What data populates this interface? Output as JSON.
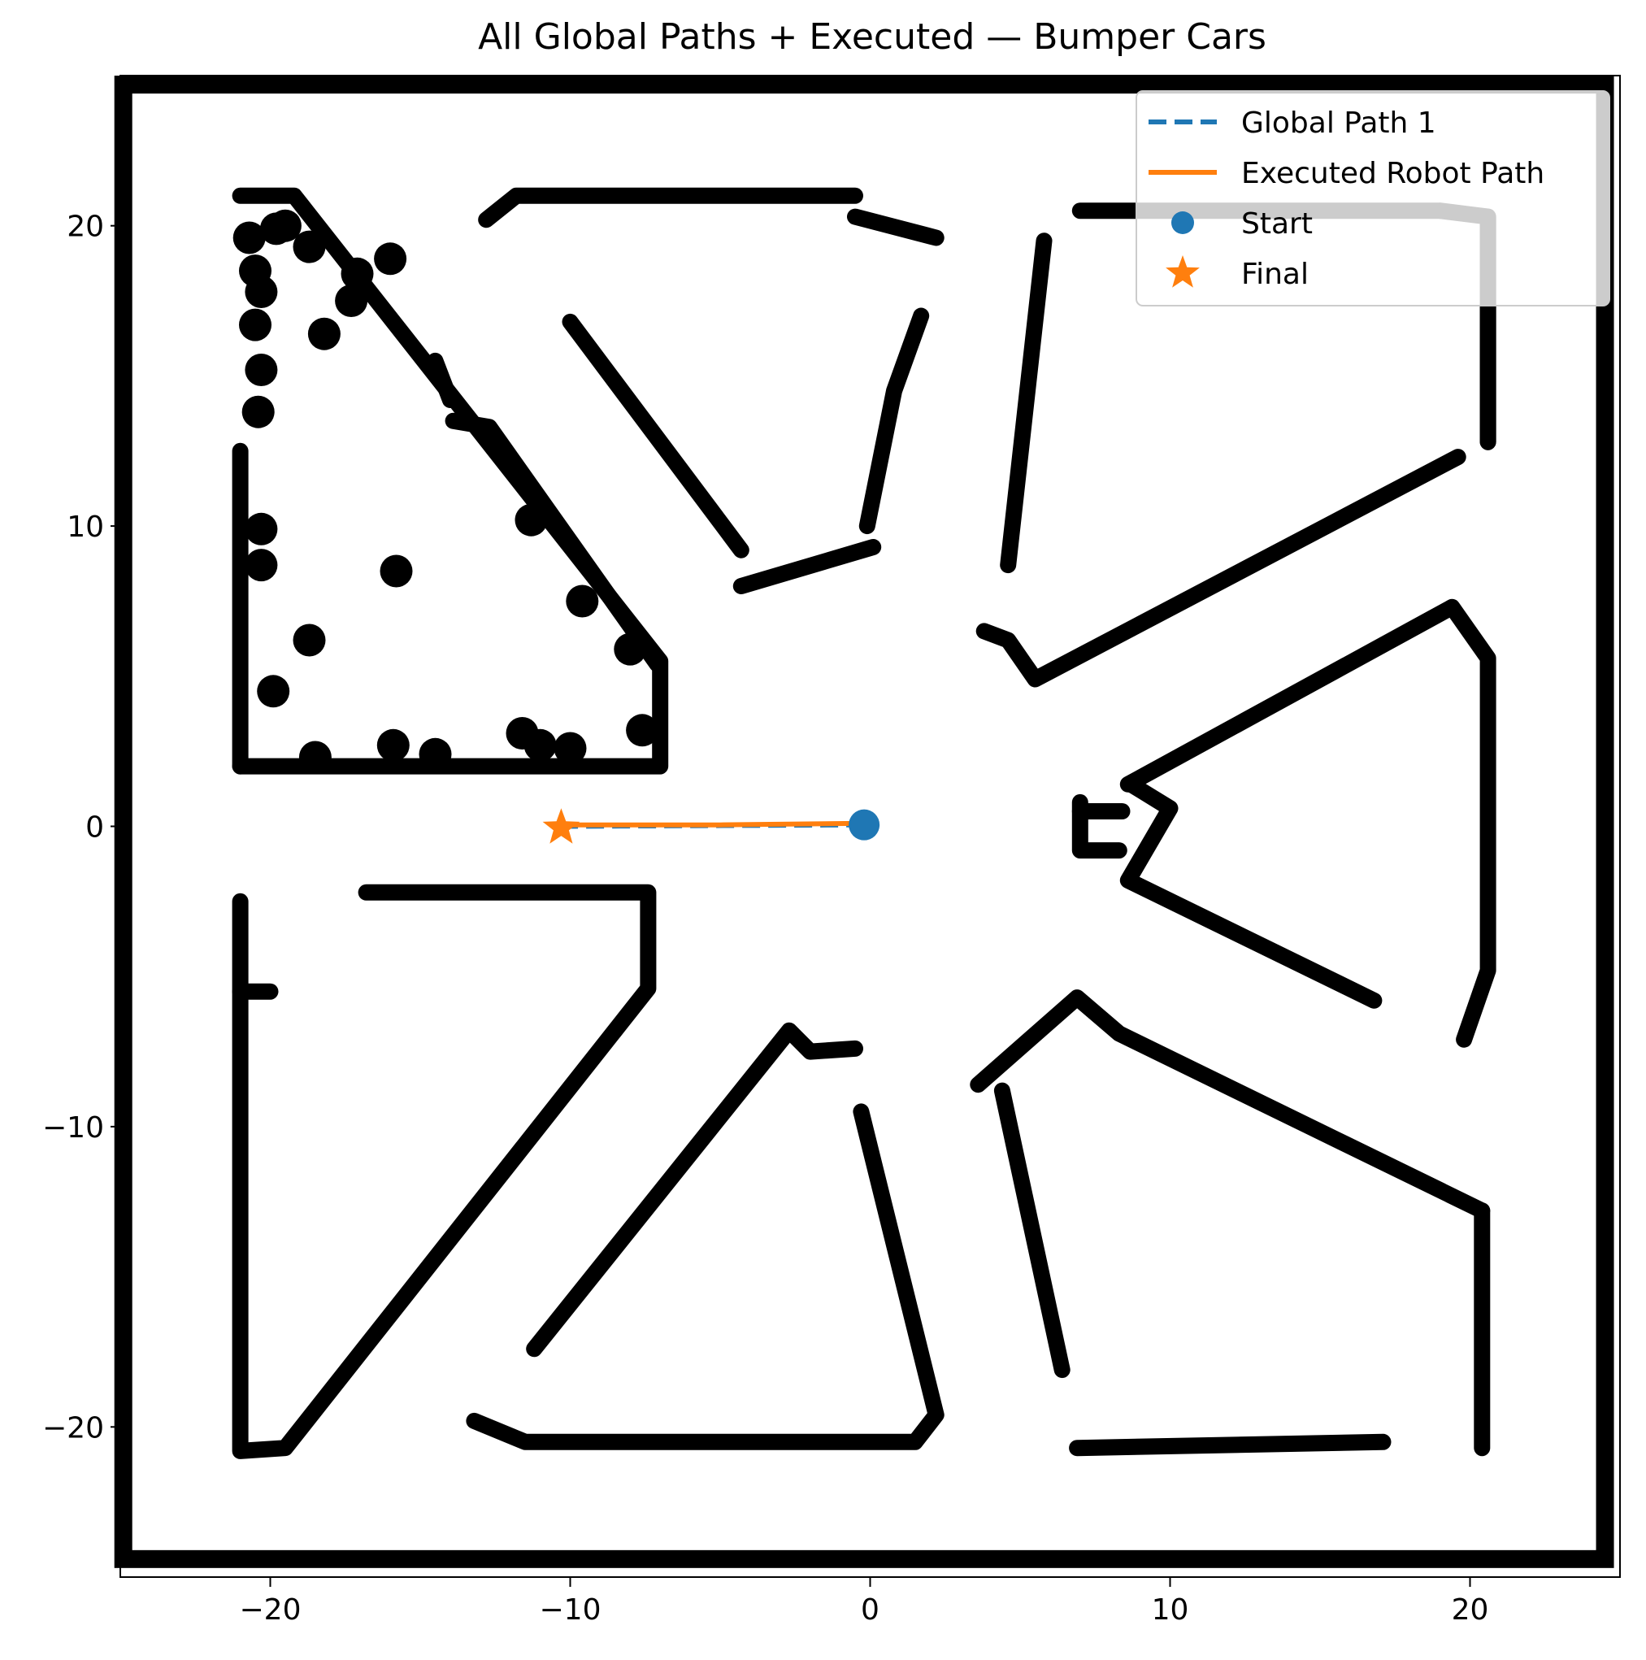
{
  "chart_data": {
    "type": "scatter",
    "title": "All Global Paths + Executed — Bumper Cars",
    "xlabel": "",
    "ylabel": "",
    "xlim": [
      -25,
      25
    ],
    "ylim": [
      -25,
      25
    ],
    "x_ticks": [
      -20,
      -10,
      0,
      10,
      20
    ],
    "y_ticks": [
      -20,
      -10,
      0,
      10,
      20
    ],
    "x_tick_labels": [
      "−20",
      "−10",
      "0",
      "10",
      "20"
    ],
    "y_tick_labels": [
      "−20",
      "−10",
      "0",
      "10",
      "20"
    ],
    "grid": false,
    "legend_position": "top-right",
    "colors": {
      "blue": "#1f77b4",
      "orange": "#ff7f0e",
      "obstacle": "#000000"
    },
    "series": [
      {
        "name": "Global Path 1",
        "style": "dashed-line",
        "color": "#1f77b4",
        "x": [
          -0.2,
          -10.2
        ],
        "y": [
          0.05,
          0.0
        ]
      },
      {
        "name": "Executed Robot Path",
        "style": "solid-line",
        "color": "#ff7f0e",
        "x": [
          -0.2,
          -5.0,
          -10.0,
          -10.3
        ],
        "y": [
          0.1,
          0.05,
          0.05,
          0.0
        ]
      },
      {
        "name": "Start",
        "style": "circle-marker",
        "color": "#1f77b4",
        "x": [
          -0.2
        ],
        "y": [
          0.05
        ]
      },
      {
        "name": "Final",
        "style": "star-marker",
        "color": "#ff7f0e",
        "x": [
          -10.3
        ],
        "y": [
          -0.05
        ]
      }
    ],
    "map_walls": [
      [
        [
          -21,
          2
        ],
        [
          -7,
          2
        ],
        [
          -7,
          5.5
        ],
        [
          -19.2,
          21
        ],
        [
          -21,
          21
        ]
      ],
      [
        [
          -21,
          2
        ],
        [
          -21,
          12.5
        ]
      ],
      [
        [
          -12.8,
          20.2
        ],
        [
          -11.8,
          21
        ],
        [
          -0.5,
          21
        ]
      ],
      [
        [
          -0.5,
          20.3
        ],
        [
          2.2,
          19.6
        ]
      ],
      [
        [
          -10,
          16.8
        ],
        [
          -4.3,
          9.2
        ]
      ],
      [
        [
          -4.3,
          8
        ],
        [
          0.1,
          9.3
        ]
      ],
      [
        [
          -0.1,
          10
        ],
        [
          0.8,
          14.5
        ],
        [
          1.7,
          17
        ]
      ],
      [
        [
          -13.9,
          13.5
        ],
        [
          -12.7,
          13.3
        ],
        [
          -7.1,
          5.4
        ]
      ],
      [
        [
          -14.5,
          15.5
        ],
        [
          -14,
          14.2
        ]
      ],
      [
        [
          4.6,
          8.7
        ],
        [
          5.8,
          19.5
        ]
      ],
      [
        [
          7,
          20.5
        ],
        [
          19,
          20.5
        ]
      ],
      [
        [
          19,
          20.5
        ],
        [
          20.6,
          20.3
        ],
        [
          20.6,
          12.8
        ]
      ],
      [
        [
          20.6,
          20.3
        ],
        [
          20.6,
          12.8
        ]
      ],
      [
        [
          3.8,
          6.5
        ],
        [
          4.6,
          6.2
        ],
        [
          5.5,
          4.9
        ],
        [
          19.6,
          12.3
        ]
      ],
      [
        [
          8.6,
          1.4
        ],
        [
          19.4,
          7.3
        ],
        [
          20.6,
          5.6
        ],
        [
          20.6,
          -4.8
        ],
        [
          19.8,
          -7.1
        ]
      ],
      [
        [
          8.7,
          1.4
        ],
        [
          10,
          0.6
        ],
        [
          8.6,
          -1.8
        ],
        [
          16.8,
          -5.8
        ]
      ],
      [
        [
          7,
          0.8
        ],
        [
          7,
          -0.8
        ],
        [
          8.3,
          -0.8
        ]
      ],
      [
        [
          7,
          0.5
        ],
        [
          8.4,
          0.5
        ]
      ],
      [
        [
          -21,
          -2.5
        ],
        [
          -21,
          -20.8
        ],
        [
          -19.5,
          -20.7
        ],
        [
          -7.4,
          -5.4
        ],
        [
          -7.4,
          -2.2
        ],
        [
          -16.8,
          -2.2
        ]
      ],
      [
        [
          -21,
          -5.5
        ],
        [
          -20,
          -5.5
        ]
      ],
      [
        [
          -11.2,
          -17.4
        ],
        [
          -2.7,
          -6.8
        ],
        [
          -2.0,
          -7.5
        ],
        [
          -0.5,
          -7.4
        ]
      ],
      [
        [
          -0.3,
          -9.5
        ],
        [
          2.2,
          -19.6
        ],
        [
          1.5,
          -20.5
        ],
        [
          -11.5,
          -20.5
        ],
        [
          -13.2,
          -19.8
        ]
      ],
      [
        [
          3.6,
          -8.6
        ],
        [
          6.9,
          -5.7
        ],
        [
          8.3,
          -6.9
        ],
        [
          20.4,
          -12.8
        ]
      ],
      [
        [
          4.4,
          -8.8
        ],
        [
          6.4,
          -18.1
        ]
      ],
      [
        [
          20.4,
          -12.8
        ],
        [
          20.4,
          -20.7
        ]
      ],
      [
        [
          6.9,
          -20.7
        ],
        [
          17.1,
          -20.5
        ]
      ]
    ],
    "map_blobs": [
      [
        -19.5,
        20
      ],
      [
        -18.7,
        19.3
      ],
      [
        -20.7,
        19.6
      ],
      [
        -20.5,
        18.5
      ],
      [
        -19.8,
        19.9
      ],
      [
        -17.3,
        17.5
      ],
      [
        -17.1,
        18.4
      ],
      [
        -16,
        18.9
      ],
      [
        -18.2,
        16.4
      ],
      [
        -20.3,
        17.8
      ],
      [
        -20.5,
        16.7
      ],
      [
        -20.3,
        15.2
      ],
      [
        -20.4,
        13.8
      ],
      [
        -15.8,
        8.5
      ],
      [
        -18.7,
        6.2
      ],
      [
        -19.9,
        4.5
      ],
      [
        -20.3,
        8.7
      ],
      [
        -20.3,
        9.9
      ],
      [
        -11.3,
        10.2
      ],
      [
        -9.6,
        7.5
      ],
      [
        -8,
        5.9
      ],
      [
        -7.6,
        3.2
      ],
      [
        -11.6,
        3.1
      ],
      [
        -11,
        2.7
      ],
      [
        -15.9,
        2.7
      ],
      [
        -14.5,
        2.4
      ],
      [
        -18.5,
        2.3
      ],
      [
        -10,
        2.6
      ]
    ]
  },
  "legend": {
    "items": [
      "Global Path 1",
      "Executed Robot Path",
      "Start",
      "Final"
    ]
  }
}
